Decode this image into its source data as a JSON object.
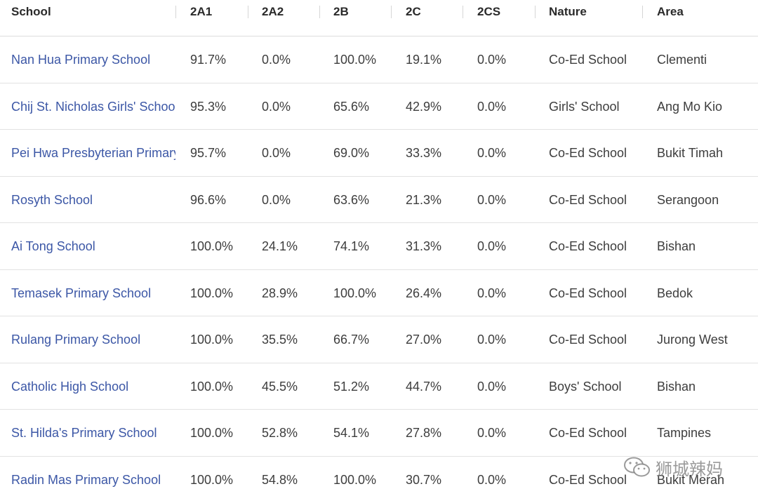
{
  "columns": [
    "School",
    "2A1",
    "2A2",
    "2B",
    "2C",
    "2CS",
    "Nature",
    "Area"
  ],
  "rows": [
    {
      "school": "Nan Hua Primary School",
      "a1": "91.7%",
      "a2": "0.0%",
      "b": "100.0%",
      "c": "19.1%",
      "cs": "0.0%",
      "nature": "Co-Ed School",
      "area": "Clementi"
    },
    {
      "school": "Chij St. Nicholas Girls' School",
      "a1": "95.3%",
      "a2": "0.0%",
      "b": "65.6%",
      "c": "42.9%",
      "cs": "0.0%",
      "nature": "Girls' School",
      "area": "Ang Mo Kio"
    },
    {
      "school": "Pei Hwa Presbyterian Primary School",
      "a1": "95.7%",
      "a2": "0.0%",
      "b": "69.0%",
      "c": "33.3%",
      "cs": "0.0%",
      "nature": "Co-Ed School",
      "area": "Bukit Timah"
    },
    {
      "school": "Rosyth School",
      "a1": "96.6%",
      "a2": "0.0%",
      "b": "63.6%",
      "c": "21.3%",
      "cs": "0.0%",
      "nature": "Co-Ed School",
      "area": "Serangoon"
    },
    {
      "school": "Ai Tong School",
      "a1": "100.0%",
      "a2": "24.1%",
      "b": "74.1%",
      "c": "31.3%",
      "cs": "0.0%",
      "nature": "Co-Ed School",
      "area": "Bishan"
    },
    {
      "school": "Temasek Primary School",
      "a1": "100.0%",
      "a2": "28.9%",
      "b": "100.0%",
      "c": "26.4%",
      "cs": "0.0%",
      "nature": "Co-Ed School",
      "area": "Bedok"
    },
    {
      "school": "Rulang Primary School",
      "a1": "100.0%",
      "a2": "35.5%",
      "b": "66.7%",
      "c": "27.0%",
      "cs": "0.0%",
      "nature": "Co-Ed School",
      "area": "Jurong West"
    },
    {
      "school": "Catholic High School",
      "a1": "100.0%",
      "a2": "45.5%",
      "b": "51.2%",
      "c": "44.7%",
      "cs": "0.0%",
      "nature": "Boys' School",
      "area": "Bishan"
    },
    {
      "school": "St. Hilda's Primary School",
      "a1": "100.0%",
      "a2": "52.8%",
      "b": "54.1%",
      "c": "27.8%",
      "cs": "0.0%",
      "nature": "Co-Ed School",
      "area": "Tampines"
    },
    {
      "school": "Radin Mas Primary School",
      "a1": "100.0%",
      "a2": "54.8%",
      "b": "100.0%",
      "c": "30.7%",
      "cs": "0.0%",
      "nature": "Co-Ed School",
      "area": "Bukit Merah"
    }
  ],
  "watermark": {
    "text": "狮城辣妈",
    "icon": "wechat-icon"
  },
  "colors": {
    "link": "#3c57a6",
    "text": "#3d3d3d",
    "divider": "#e2e2e2"
  }
}
